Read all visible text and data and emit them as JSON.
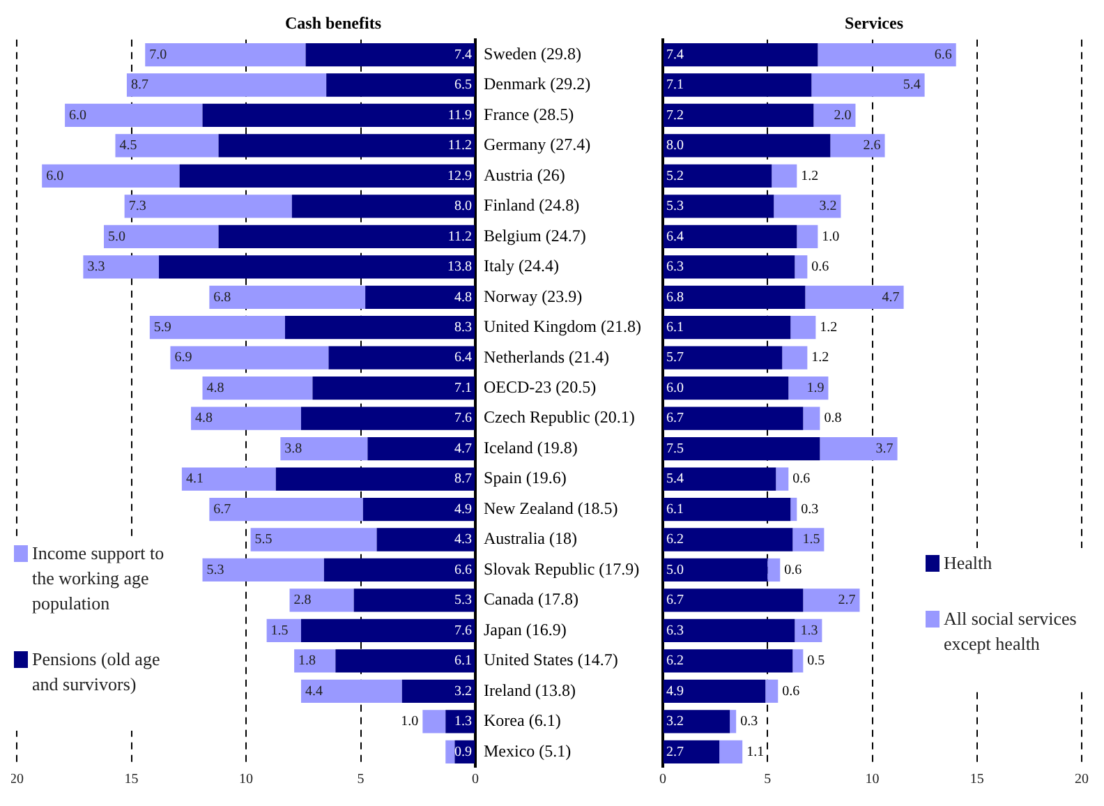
{
  "chart_data": [
    {
      "type": "bar",
      "orientation": "horizontal",
      "stacked": true,
      "title": "Cash benefits",
      "categories": [
        "Sweden (29.8)",
        "Denmark (29.2)",
        "France (28.5)",
        "Germany (27.4)",
        "Austria (26)",
        "Finland (24.8)",
        "Belgium (24.7)",
        "Italy (24.4)",
        "Norway (23.9)",
        "United Kingdom (21.8)",
        "Netherlands (21.4)",
        "OECD-23 (20.5)",
        "Czech Republic (20.1)",
        "Iceland (19.8)",
        "Spain (19.6)",
        "New Zealand (18.5)",
        "Australia (18)",
        "Slovak Republic (17.9)",
        "Canada (17.8)",
        "Japan (16.9)",
        "United States (14.7)",
        "Ireland (13.8)",
        "Korea (6.1)",
        "Mexico (5.1)"
      ],
      "series": [
        {
          "name": "Pensions (old age and survivors)",
          "color": "#000080",
          "values": [
            7.4,
            6.5,
            11.9,
            11.2,
            12.9,
            8.0,
            11.2,
            13.8,
            4.8,
            8.3,
            6.4,
            7.1,
            7.6,
            4.7,
            8.7,
            4.9,
            4.3,
            6.6,
            5.3,
            7.6,
            6.1,
            3.2,
            1.3,
            0.9
          ],
          "value_labels": [
            "7.4",
            "6.5",
            "11.9",
            "11.2",
            "12.9",
            "8.0",
            "11.2",
            "13.8",
            "4.8",
            "8.3",
            "6.4",
            "7.1",
            "7.6",
            "4.7",
            "8.7",
            "4.9",
            "4.3",
            "6.6",
            "5.3",
            "7.6",
            "6.1",
            "3.2",
            "1.3",
            "0.9"
          ]
        },
        {
          "name": "Income support to the working age population",
          "color": "#9999ff",
          "values": [
            7.0,
            8.7,
            6.0,
            4.5,
            6.0,
            7.3,
            5.0,
            3.3,
            6.8,
            5.9,
            6.9,
            4.8,
            4.8,
            3.8,
            4.1,
            6.7,
            5.5,
            5.3,
            2.8,
            1.5,
            1.8,
            4.4,
            1.0,
            0.4
          ],
          "value_labels": [
            "7.0",
            "8.7",
            "6.0",
            "4.5",
            "6.0",
            "7.3",
            "5.0",
            "3.3",
            "6.8",
            "5.9",
            "6.9",
            "4.8",
            "4.8",
            "3.8",
            "4.1",
            "6.7",
            "5.5",
            "5.3",
            "2.8",
            "1.5",
            "1.8",
            "4.4",
            "1.0",
            null
          ]
        }
      ],
      "xlim": [
        20,
        0
      ],
      "xticks": [
        0,
        5,
        10,
        15,
        20
      ],
      "grid": "x",
      "legend": "bottom left"
    },
    {
      "type": "bar",
      "orientation": "horizontal",
      "stacked": true,
      "title": "Services",
      "categories": [
        null,
        null,
        null,
        null,
        null,
        null,
        null,
        null,
        null,
        null,
        null,
        null,
        null,
        null,
        null,
        null,
        null,
        null,
        null,
        null,
        null,
        null,
        null,
        null
      ],
      "series": [
        {
          "name": "Health",
          "color": "#000080",
          "values": [
            7.4,
            7.1,
            7.2,
            8.0,
            5.2,
            5.3,
            6.4,
            6.3,
            6.8,
            6.1,
            5.7,
            6.0,
            6.7,
            7.5,
            5.4,
            6.1,
            6.2,
            5.0,
            6.7,
            6.3,
            6.2,
            4.9,
            3.2,
            2.7
          ],
          "value_labels": [
            "7.4",
            "7.1",
            "7.2",
            "8.0",
            "5.2",
            "5.3",
            "6.4",
            "6.3",
            "6.8",
            "6.1",
            "5.7",
            "6.0",
            "6.7",
            "7.5",
            "5.4",
            "6.1",
            "6.2",
            "5.0",
            "6.7",
            "6.3",
            "6.2",
            "4.9",
            "3.2",
            "2.7"
          ]
        },
        {
          "name": "All social services except health",
          "color": "#9999ff",
          "values": [
            6.6,
            5.4,
            2.0,
            2.6,
            1.2,
            3.2,
            1.0,
            0.6,
            4.7,
            1.2,
            1.2,
            1.9,
            0.8,
            3.7,
            0.6,
            0.3,
            1.5,
            0.6,
            2.7,
            1.3,
            0.5,
            0.6,
            0.3,
            1.1
          ],
          "value_labels": [
            "6.6",
            "5.4",
            "2.0",
            "2.6",
            "1.2",
            "3.2",
            "1.0",
            "0.6",
            "4.7",
            "1.2",
            "1.2",
            "1.9",
            "0.8",
            "3.7",
            "0.6",
            "0.3",
            "1.5",
            "0.6",
            "2.7",
            "1.3",
            "0.5",
            "0.6",
            "0.3",
            "1.1"
          ]
        }
      ],
      "xlim": [
        0,
        20
      ],
      "xticks": [
        0,
        5,
        10,
        15,
        20
      ],
      "grid": "x",
      "legend": "right",
      "tick_labels": "x"
    }
  ]
}
